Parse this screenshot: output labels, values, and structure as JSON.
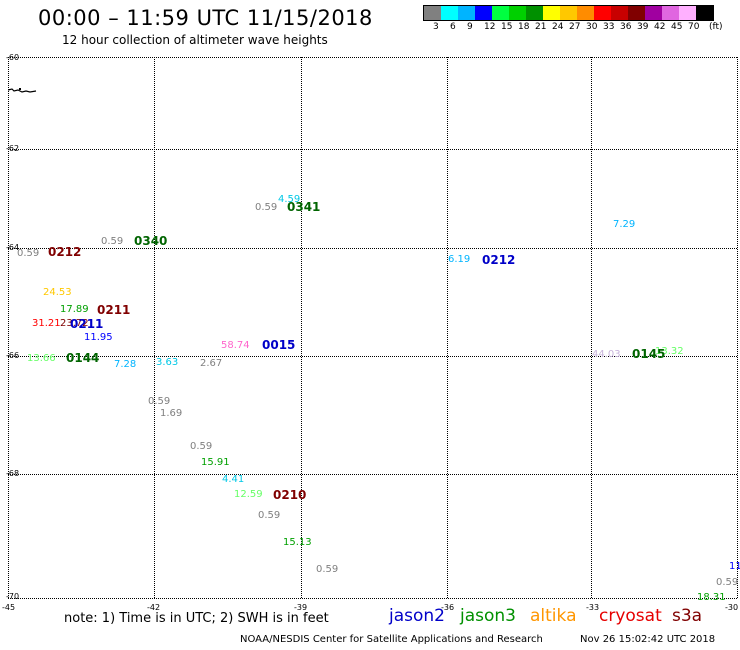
{
  "header": {
    "title": "00:00 – 11:59 UTC 11/15/2018",
    "subtitle": "12 hour collection of altimeter wave heights"
  },
  "legend": {
    "colors": [
      "#808080",
      "#00ffff",
      "#00b4ff",
      "#0000ff",
      "#00ff40",
      "#00d000",
      "#009000",
      "#ffff00",
      "#ffc800",
      "#ff8c00",
      "#ff0000",
      "#c80000",
      "#800000",
      "#a000a0",
      "#e066e0",
      "#ffb0ff",
      "#000000"
    ],
    "labels": [
      "3",
      "6",
      "9",
      "12",
      "15",
      "18",
      "21",
      "24",
      "27",
      "30",
      "33",
      "36",
      "39",
      "42",
      "45",
      "70",
      "(ft)"
    ]
  },
  "axes": {
    "lat_labels": [
      "-60",
      "-62",
      "-64",
      "-66",
      "-68",
      "-70"
    ],
    "lon_labels": [
      "-45",
      "-42",
      "-39",
      "-36",
      "-33",
      "-30"
    ]
  },
  "observations": [
    {
      "text": "4.59",
      "color": "#00c8e6"
    },
    {
      "text": "0.59",
      "color": "#808080"
    },
    {
      "text": "7.29",
      "color": "#00b4ff"
    },
    {
      "text": "0.59",
      "color": "#808080"
    },
    {
      "text": "0.59",
      "color": "#808080"
    },
    {
      "text": "6.19",
      "color": "#00b4ff"
    },
    {
      "text": "24.53",
      "color": "#ffc800"
    },
    {
      "text": "17.89",
      "color": "#00a000"
    },
    {
      "text": "31.21",
      "color": "#ff0000"
    },
    {
      "text": "23.72",
      "color": "#800000"
    },
    {
      "text": "11.95",
      "color": "#0000ff"
    },
    {
      "text": "58.74",
      "color": "#ff66cc"
    },
    {
      "text": "13.66",
      "color": "#66ff66"
    },
    {
      "text": "7.28",
      "color": "#00b4ff"
    },
    {
      "text": "3.63",
      "color": "#00c8e6"
    },
    {
      "text": "2.67",
      "color": "#808080"
    },
    {
      "text": "44.03",
      "color": "#c8b4dc"
    },
    {
      "text": "13.32",
      "color": "#66ff66"
    },
    {
      "text": "0.59",
      "color": "#808080"
    },
    {
      "text": "1.69",
      "color": "#808080"
    },
    {
      "text": "0.59",
      "color": "#808080"
    },
    {
      "text": "15.91",
      "color": "#00a000"
    },
    {
      "text": "4.41",
      "color": "#00c8e6"
    },
    {
      "text": "12.59",
      "color": "#66ff66"
    },
    {
      "text": "0.59",
      "color": "#808080"
    },
    {
      "text": "15.13",
      "color": "#00a000"
    },
    {
      "text": "0.59",
      "color": "#808080"
    },
    {
      "text": "11",
      "color": "#0000ff"
    },
    {
      "text": "0.59",
      "color": "#808080"
    },
    {
      "text": "18.31",
      "color": "#00a000"
    }
  ],
  "passes": [
    {
      "text": "0341",
      "color": "#006400"
    },
    {
      "text": "0340",
      "color": "#006400"
    },
    {
      "text": "0212",
      "color": "#800000"
    },
    {
      "text": "0212",
      "color": "#0000c8"
    },
    {
      "text": "0211",
      "color": "#800000"
    },
    {
      "text": "0211",
      "color": "#0000c8"
    },
    {
      "text": "0015",
      "color": "#0000c8"
    },
    {
      "text": "0144",
      "color": "#006400"
    },
    {
      "text": "0145",
      "color": "#006400"
    },
    {
      "text": "0210",
      "color": "#800000"
    }
  ],
  "footer": {
    "note": "note: 1) Time is in UTC; 2) SWH is in feet",
    "satellites": [
      {
        "name": "jason2",
        "color": "#0000c8"
      },
      {
        "name": "jason3",
        "color": "#009000"
      },
      {
        "name": "altika",
        "color": "#ff9600"
      },
      {
        "name": "cryosat",
        "color": "#e60000"
      },
      {
        "name": "s3a",
        "color": "#800000"
      }
    ],
    "credit": "NOAA/NESDIS Center for Satellite Applications and Research",
    "timestamp": "Nov 26 15:02:42 UTC 2018"
  }
}
